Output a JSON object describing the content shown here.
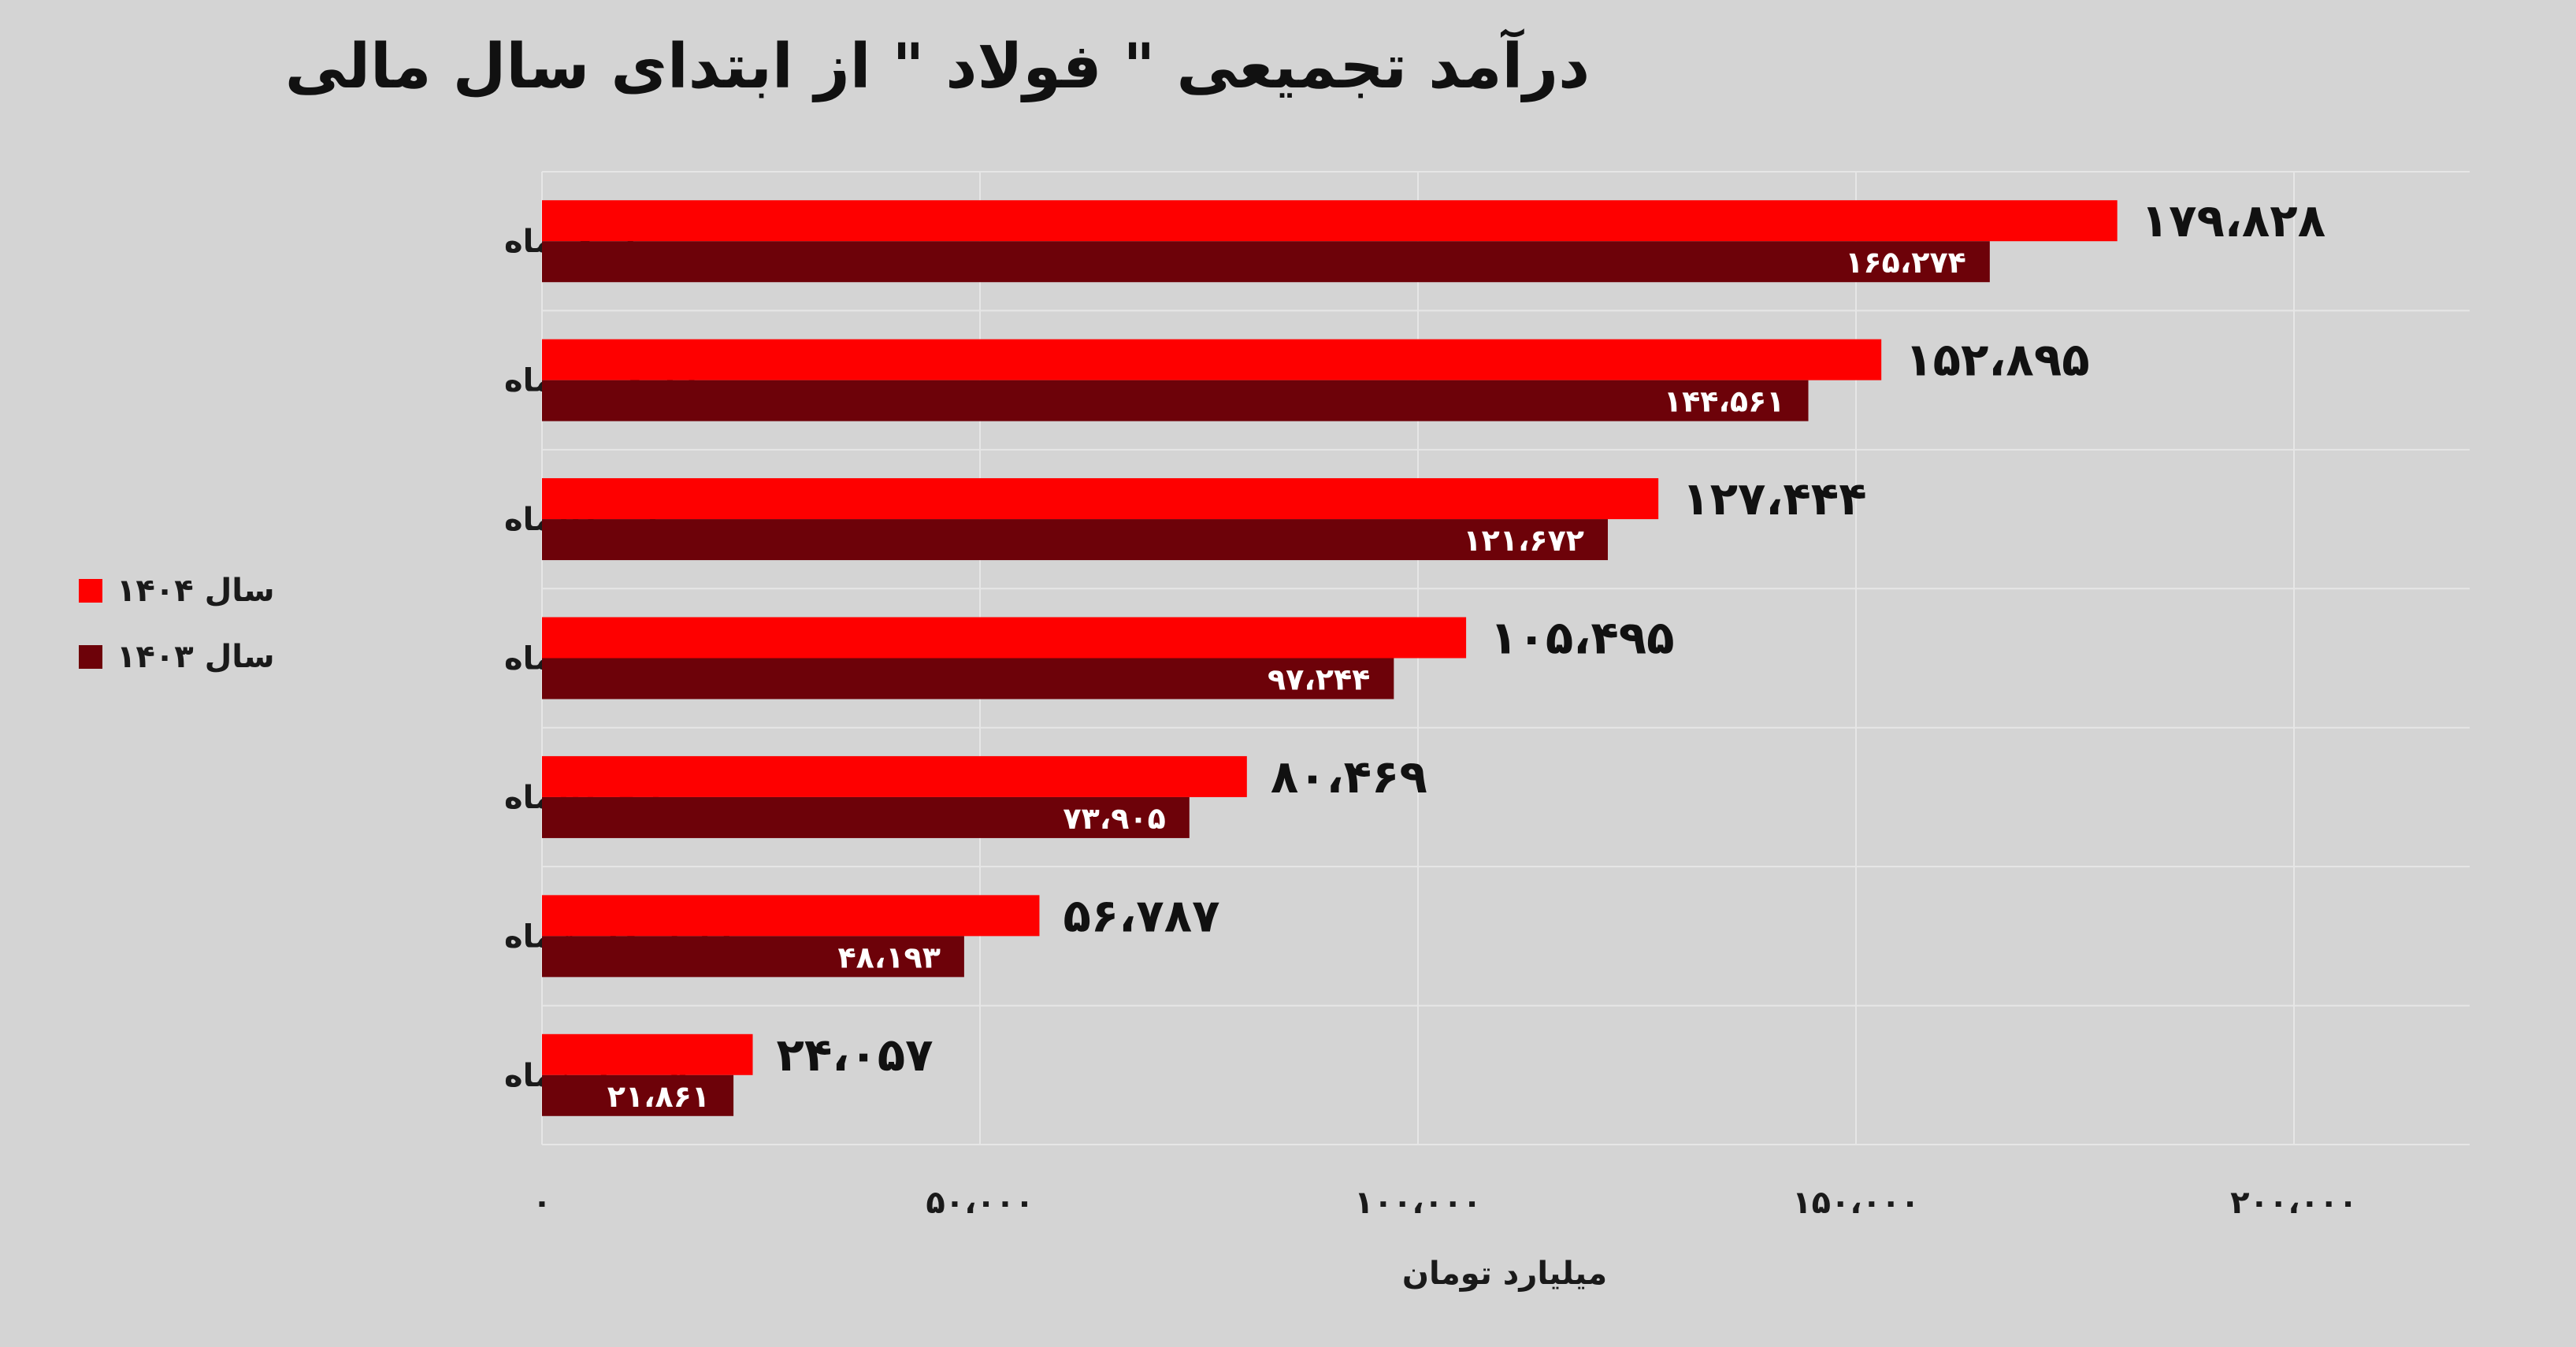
{
  "chart_data": {
    "type": "bar",
    "orientation": "horizontal",
    "title": "درآمد تجمیعی \" فولاد \" از ابتدای سال مالی",
    "xlabel": "میلیارد تومان",
    "ylabel": "",
    "categories": [
      "تا مهرماه",
      "تا شهریورماه",
      "تا مردادماه",
      "تا تیرماه",
      "تا خردادماه",
      "تا اردیبهشت‌ماه",
      "فروردین‌ماه"
    ],
    "series": [
      {
        "name": "سال ۱۴۰۴",
        "color": "#fe0000",
        "values": [
          179828,
          152895,
          127444,
          105495,
          80469,
          56787,
          24057
        ],
        "labels": [
          "۱۷۹،۸۲۸",
          "۱۵۲،۸۹۵",
          "۱۲۷،۴۴۴",
          "۱۰۵،۴۹۵",
          "۸۰،۴۶۹",
          "۵۶،۷۸۷",
          "۲۴،۰۵۷"
        ]
      },
      {
        "name": "سال ۱۴۰۳",
        "color": "#6d0209",
        "values": [
          165274,
          144561,
          121672,
          97244,
          73905,
          48193,
          21861
        ],
        "labels": [
          "۱۶۵،۲۷۴",
          "۱۴۴،۵۶۱",
          "۱۲۱،۶۷۲",
          "۹۷،۲۴۴",
          "۷۳،۹۰۵",
          "۴۸،۱۹۳",
          "۲۱،۸۶۱"
        ]
      }
    ],
    "xlim": [
      0,
      220000
    ],
    "x_ticks": [
      0,
      50000,
      100000,
      150000,
      200000
    ],
    "x_tick_labels": [
      "۰",
      "۵۰،۰۰۰",
      "۱۰۰،۰۰۰",
      "۱۵۰،۰۰۰",
      "۲۰۰،۰۰۰"
    ],
    "grid": true,
    "legend_position": "left"
  },
  "colors": {
    "background": "#d4d4d4",
    "gridline": "#e6e6e6"
  }
}
